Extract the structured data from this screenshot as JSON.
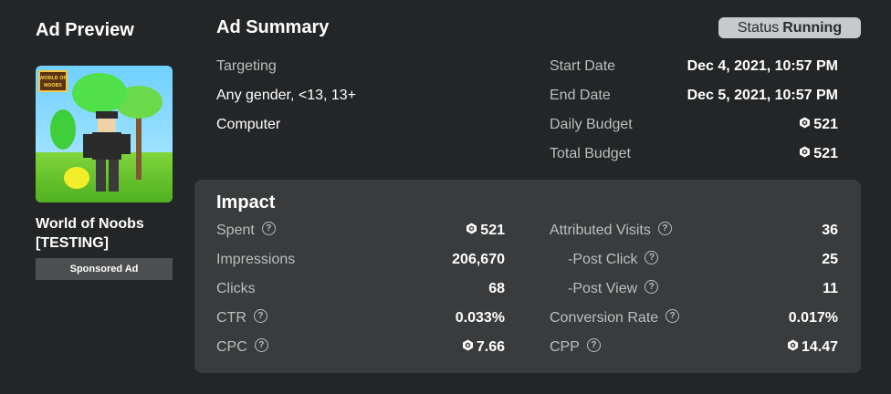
{
  "ad_preview": {
    "heading": "Ad Preview",
    "game_name": "World of Noobs [TESTING]",
    "sponsored_label": "Sponsored Ad",
    "thumbnail_logo_text": "WORLD OF NOOBS"
  },
  "summary": {
    "heading": "Ad Summary",
    "status_label": "Status",
    "status_value": "Running",
    "targeting_label": "Targeting",
    "targeting_audience": "Any gender, <13, 13+",
    "targeting_device": "Computer",
    "start_date_label": "Start Date",
    "start_date_value": "Dec 4, 2021, 10:57 PM",
    "end_date_label": "End Date",
    "end_date_value": "Dec 5, 2021, 10:57 PM",
    "daily_budget_label": "Daily Budget",
    "daily_budget_value": "521",
    "total_budget_label": "Total Budget",
    "total_budget_value": "521"
  },
  "impact": {
    "heading": "Impact",
    "left": [
      {
        "label": "Spent",
        "help": true,
        "robux": true,
        "value": "521"
      },
      {
        "label": "Impressions",
        "help": false,
        "robux": false,
        "value": "206,670"
      },
      {
        "label": "Clicks",
        "help": false,
        "robux": false,
        "value": "68"
      },
      {
        "label": "CTR",
        "help": true,
        "robux": false,
        "value": "0.033%"
      },
      {
        "label": "CPC",
        "help": true,
        "robux": true,
        "value": "7.66"
      }
    ],
    "right": [
      {
        "label": "Attributed Visits",
        "help": true,
        "robux": false,
        "value": "36"
      },
      {
        "label": "-Post Click",
        "help": true,
        "robux": false,
        "value": "25"
      },
      {
        "label": "-Post View",
        "help": true,
        "robux": false,
        "value": "11"
      },
      {
        "label": "Conversion Rate",
        "help": true,
        "robux": false,
        "value": "0.017%"
      },
      {
        "label": "CPP",
        "help": true,
        "robux": true,
        "value": "14.47"
      }
    ]
  },
  "colors": {
    "background": "#232527",
    "panel": "#393b3d",
    "label_gray": "#bdbebe",
    "status_pill": "#c8c9ca"
  },
  "icons": {
    "help": "question-circle-icon",
    "currency": "robux-icon"
  }
}
